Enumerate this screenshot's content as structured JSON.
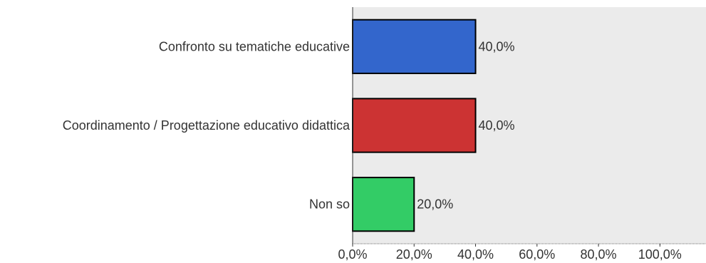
{
  "chart_data": {
    "type": "bar",
    "orientation": "horizontal",
    "categories": [
      "Confronto su tematiche educative",
      "Coordinamento / Progettazione educativo didattica",
      "Non so"
    ],
    "values": [
      40.0,
      40.0,
      20.0
    ],
    "value_labels": [
      "40,0%",
      "40,0%",
      "20,0%"
    ],
    "colors": [
      "#3366cc",
      "#cc3333",
      "#33cc66"
    ],
    "xlim": [
      0,
      115
    ],
    "x_ticks": [
      0,
      20,
      40,
      60,
      80,
      100
    ],
    "x_tick_labels": [
      "0,0%",
      "20,0%",
      "40,0%",
      "60,0%",
      "80,0%",
      "100,0%"
    ],
    "plot_background": "#ebebeb",
    "grid": false,
    "legend": "none"
  }
}
